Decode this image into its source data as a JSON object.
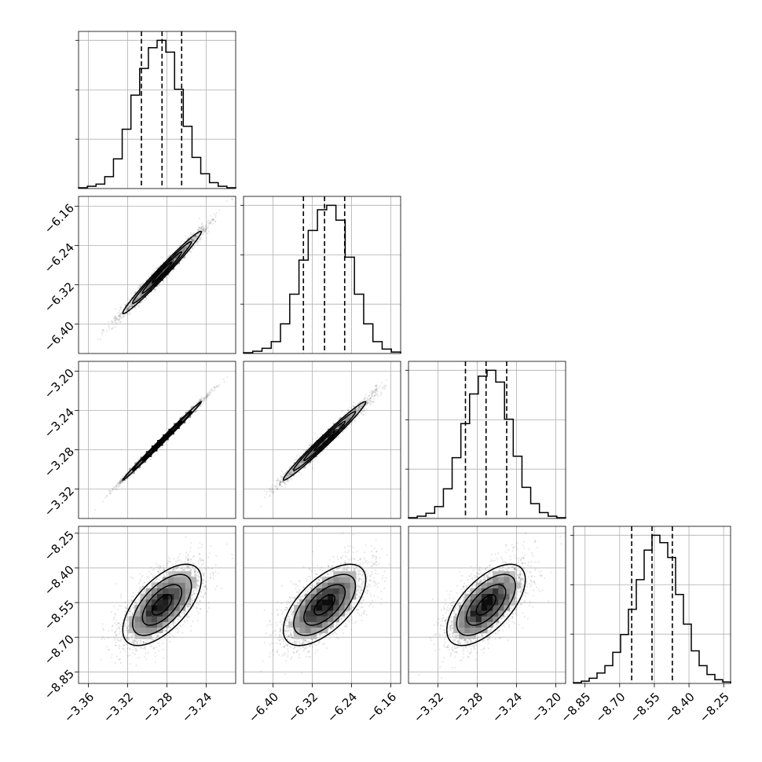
{
  "chart_data": {
    "type": "corner",
    "title": "",
    "grid": true,
    "parameters": [
      {
        "index": 0,
        "mean": -3.285,
        "sd": 0.02,
        "range": [
          -3.37,
          -3.21
        ],
        "ticks": [
          -3.36,
          -3.32,
          -3.28,
          -3.24
        ],
        "tick_labels": [
          "−3.36",
          "−3.32",
          "−3.28",
          "−3.24"
        ],
        "quantiles": [
          -3.306,
          -3.285,
          -3.265
        ],
        "hist_counts": [
          0.5,
          1.5,
          3,
          8,
          20,
          40,
          63,
          81,
          95,
          100,
          92,
          67,
          42,
          21,
          10,
          4,
          1.5,
          0.5
        ]
      },
      {
        "index": 1,
        "mean": -6.295,
        "sd": 0.042,
        "range": [
          -6.46,
          -6.14
        ],
        "ticks": [
          -6.4,
          -6.32,
          -6.24,
          -6.16
        ],
        "tick_labels": [
          "−6.40",
          "−6.32",
          "−6.24",
          "−6.16"
        ],
        "quantiles": [
          -6.338,
          -6.295,
          -6.254
        ],
        "hist_counts": [
          0.5,
          1.5,
          3.5,
          8,
          20,
          40,
          63,
          83,
          97,
          100,
          90,
          65,
          40,
          20,
          8,
          3,
          1
        ]
      },
      {
        "index": 2,
        "mean": -3.271,
        "sd": 0.02,
        "range": [
          -3.35,
          -3.19
        ],
        "ticks": [
          -3.32,
          -3.28,
          -3.24,
          -3.2
        ],
        "tick_labels": [
          "−3.32",
          "−3.28",
          "−3.24",
          "−3.20"
        ],
        "quantiles": [
          -3.292,
          -3.271,
          -3.25
        ],
        "hist_counts": [
          0.5,
          1.5,
          3.5,
          8,
          20,
          41,
          64,
          84,
          96,
          100,
          92,
          67,
          42,
          21,
          10,
          4,
          1.5,
          0.5
        ]
      },
      {
        "index": 3,
        "mean": -8.56,
        "sd": 0.088,
        "range": [
          -8.9,
          -8.22
        ],
        "ticks": [
          -8.85,
          -8.7,
          -8.55,
          -8.4,
          -8.25
        ],
        "tick_labels": [
          "−8.85",
          "−8.70",
          "−8.55",
          "−8.40",
          "−8.25"
        ],
        "quantiles": [
          -8.648,
          -8.56,
          -8.472
        ],
        "hist_counts": [
          0.5,
          1.5,
          3.5,
          7,
          12,
          21,
          33,
          50,
          70,
          90,
          100,
          95,
          85,
          60,
          40,
          22,
          12,
          6,
          2.5,
          1
        ]
      }
    ],
    "correlations": {
      "1-0": 0.985,
      "2-0": 0.997,
      "2-1": 0.985,
      "3-0": 0.62,
      "3-1": 0.62,
      "3-2": 0.62
    },
    "contour_levels_sigma": [
      0.5,
      1.0,
      1.5,
      2.0
    ],
    "scatter_points_per_panel": 2800
  }
}
